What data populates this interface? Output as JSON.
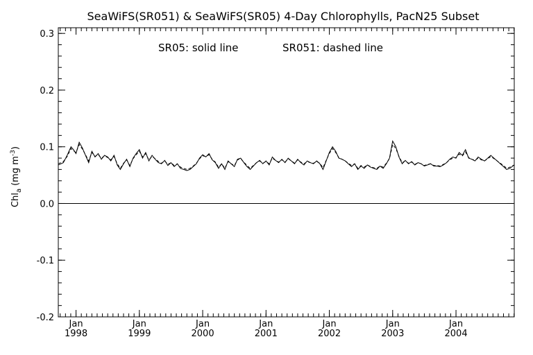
{
  "chart_data": {
    "type": "line",
    "title": "SeaWiFS(SR051) & SeaWiFS(SR05) 4-Day Chlorophylls, PacN25 Subset",
    "annotation_solid": "SR05: solid line",
    "annotation_dashed": "SR051: dashed line",
    "ylabel_main": "Chl",
    "ylabel_sub": "a",
    "ylabel_units": "(mg m",
    "ylabel_exp": "-3",
    "ylabel_close": ")",
    "xlim": [
      1997.72,
      2004.92
    ],
    "ylim": [
      -0.2,
      0.31
    ],
    "yticks": [
      -0.2,
      -0.1,
      0.0,
      0.1,
      0.2,
      0.3
    ],
    "ytick_labels": [
      "-0.2",
      "-0.1",
      "0.0",
      "0.1",
      "0.2",
      "0.3"
    ],
    "xticks": [
      {
        "x": 1998.0,
        "month": "Jan",
        "year": "1998"
      },
      {
        "x": 1999.0,
        "month": "Jan",
        "year": "1999"
      },
      {
        "x": 2000.0,
        "month": "Jan",
        "year": "2000"
      },
      {
        "x": 2001.0,
        "month": "Jan",
        "year": "2001"
      },
      {
        "x": 2002.0,
        "month": "Jan",
        "year": "2002"
      },
      {
        "x": 2003.0,
        "month": "Jan",
        "year": "2003"
      },
      {
        "x": 2004.0,
        "month": "Jan",
        "year": "2004"
      }
    ],
    "zero_line": 0.0,
    "grid": false,
    "series": [
      {
        "name": "SR05",
        "style": "solid",
        "x": [
          1997.72,
          1997.8,
          1997.86,
          1997.92,
          1997.96,
          1998.0,
          1998.05,
          1998.1,
          1998.15,
          1998.2,
          1998.25,
          1998.3,
          1998.35,
          1998.4,
          1998.45,
          1998.5,
          1998.55,
          1998.6,
          1998.65,
          1998.7,
          1998.75,
          1998.8,
          1998.85,
          1998.9,
          1998.95,
          1999.0,
          1999.05,
          1999.1,
          1999.15,
          1999.2,
          1999.25,
          1999.3,
          1999.35,
          1999.4,
          1999.45,
          1999.5,
          1999.55,
          1999.6,
          1999.65,
          1999.7,
          1999.75,
          1999.8,
          1999.85,
          1999.9,
          1999.95,
          2000.0,
          2000.05,
          2000.1,
          2000.15,
          2000.2,
          2000.25,
          2000.3,
          2000.35,
          2000.4,
          2000.45,
          2000.5,
          2000.55,
          2000.6,
          2000.65,
          2000.7,
          2000.75,
          2000.8,
          2000.85,
          2000.9,
          2000.95,
          2001.0,
          2001.05,
          2001.1,
          2001.15,
          2001.2,
          2001.25,
          2001.3,
          2001.35,
          2001.4,
          2001.45,
          2001.5,
          2001.55,
          2001.6,
          2001.65,
          2001.7,
          2001.75,
          2001.8,
          2001.85,
          2001.9,
          2001.95,
          2002.0,
          2002.05,
          2002.1,
          2002.15,
          2002.2,
          2002.25,
          2002.3,
          2002.35,
          2002.4,
          2002.45,
          2002.5,
          2002.55,
          2002.6,
          2002.65,
          2002.7,
          2002.75,
          2002.8,
          2002.85,
          2002.9,
          2002.95,
          2003.0,
          2003.05,
          2003.1,
          2003.15,
          2003.2,
          2003.25,
          2003.3,
          2003.35,
          2003.4,
          2003.45,
          2003.5,
          2003.55,
          2003.6,
          2003.65,
          2003.7,
          2003.75,
          2003.8,
          2003.85,
          2003.9,
          2003.95,
          2004.0,
          2004.05,
          2004.1,
          2004.15,
          2004.2,
          2004.25,
          2004.3,
          2004.35,
          2004.4,
          2004.45,
          2004.5,
          2004.55,
          2004.6,
          2004.65,
          2004.7,
          2004.75,
          2004.8,
          2004.85,
          2004.92
        ],
        "y": [
          0.068,
          0.072,
          0.085,
          0.1,
          0.095,
          0.088,
          0.108,
          0.098,
          0.085,
          0.072,
          0.092,
          0.082,
          0.088,
          0.078,
          0.085,
          0.082,
          0.075,
          0.085,
          0.068,
          0.06,
          0.07,
          0.078,
          0.065,
          0.08,
          0.088,
          0.095,
          0.08,
          0.09,
          0.075,
          0.085,
          0.078,
          0.072,
          0.07,
          0.076,
          0.067,
          0.072,
          0.065,
          0.07,
          0.062,
          0.06,
          0.058,
          0.06,
          0.065,
          0.07,
          0.08,
          0.086,
          0.082,
          0.088,
          0.077,
          0.072,
          0.062,
          0.07,
          0.06,
          0.075,
          0.07,
          0.065,
          0.078,
          0.08,
          0.072,
          0.065,
          0.06,
          0.066,
          0.072,
          0.076,
          0.07,
          0.075,
          0.068,
          0.082,
          0.076,
          0.072,
          0.078,
          0.072,
          0.08,
          0.075,
          0.07,
          0.078,
          0.072,
          0.068,
          0.075,
          0.072,
          0.07,
          0.075,
          0.07,
          0.06,
          0.075,
          0.09,
          0.1,
          0.092,
          0.08,
          0.078,
          0.075,
          0.07,
          0.065,
          0.07,
          0.06,
          0.066,
          0.062,
          0.068,
          0.064,
          0.062,
          0.06,
          0.066,
          0.062,
          0.07,
          0.08,
          0.11,
          0.1,
          0.082,
          0.07,
          0.076,
          0.07,
          0.074,
          0.068,
          0.072,
          0.07,
          0.066,
          0.068,
          0.07,
          0.066,
          0.066,
          0.065,
          0.068,
          0.072,
          0.078,
          0.082,
          0.08,
          0.09,
          0.085,
          0.095,
          0.08,
          0.078,
          0.075,
          0.082,
          0.078,
          0.075,
          0.08,
          0.085,
          0.08,
          0.075,
          0.07,
          0.065,
          0.06,
          0.062,
          0.068
        ]
      },
      {
        "name": "SR051",
        "style": "dashed",
        "x": [
          1997.72,
          1997.8,
          1997.86,
          1997.92,
          1997.96,
          1998.0,
          1998.05,
          1998.1,
          1998.15,
          1998.2,
          1998.25,
          1998.3,
          1998.35,
          1998.4,
          1998.45,
          1998.5,
          1998.55,
          1998.6,
          1998.65,
          1998.7,
          1998.75,
          1998.8,
          1998.85,
          1998.9,
          1998.95,
          1999.0,
          1999.05,
          1999.1,
          1999.15,
          1999.2,
          1999.25,
          1999.3,
          1999.35,
          1999.4,
          1999.45,
          1999.5,
          1999.55,
          1999.6,
          1999.65,
          1999.7,
          1999.75,
          1999.8,
          1999.85,
          1999.9,
          1999.95,
          2000.0,
          2000.05,
          2000.1,
          2000.15,
          2000.2,
          2000.25,
          2000.3,
          2000.35,
          2000.4,
          2000.45,
          2000.5,
          2000.55,
          2000.6,
          2000.65,
          2000.7,
          2000.75,
          2000.8,
          2000.85,
          2000.9,
          2000.95,
          2001.0,
          2001.05,
          2001.1,
          2001.15,
          2001.2,
          2001.25,
          2001.3,
          2001.35,
          2001.4,
          2001.45,
          2001.5,
          2001.55,
          2001.6,
          2001.65,
          2001.7,
          2001.75,
          2001.8,
          2001.85,
          2001.9,
          2001.95,
          2002.0,
          2002.05,
          2002.1,
          2002.15,
          2002.2,
          2002.25,
          2002.3,
          2002.35,
          2002.4,
          2002.45,
          2002.5,
          2002.55,
          2002.6,
          2002.65,
          2002.7,
          2002.75,
          2002.8,
          2002.85,
          2002.9,
          2002.95,
          2003.0,
          2003.05,
          2003.1,
          2003.15,
          2003.2,
          2003.25,
          2003.3,
          2003.35,
          2003.4,
          2003.45,
          2003.5,
          2003.55,
          2003.6,
          2003.65,
          2003.7,
          2003.75,
          2003.8,
          2003.85,
          2003.9,
          2003.95,
          2004.0,
          2004.05,
          2004.1,
          2004.15,
          2004.2,
          2004.25,
          2004.3,
          2004.35,
          2004.4,
          2004.45,
          2004.5,
          2004.55,
          2004.6,
          2004.65,
          2004.7,
          2004.75,
          2004.8,
          2004.85,
          2004.92
        ],
        "y": [
          0.07,
          0.074,
          0.083,
          0.097,
          0.093,
          0.09,
          0.104,
          0.096,
          0.086,
          0.075,
          0.09,
          0.083,
          0.086,
          0.08,
          0.084,
          0.081,
          0.077,
          0.083,
          0.07,
          0.062,
          0.071,
          0.077,
          0.067,
          0.079,
          0.086,
          0.092,
          0.082,
          0.088,
          0.077,
          0.083,
          0.079,
          0.074,
          0.071,
          0.075,
          0.069,
          0.072,
          0.067,
          0.07,
          0.064,
          0.062,
          0.06,
          0.062,
          0.066,
          0.071,
          0.079,
          0.084,
          0.083,
          0.086,
          0.078,
          0.073,
          0.064,
          0.07,
          0.062,
          0.074,
          0.07,
          0.067,
          0.077,
          0.079,
          0.073,
          0.067,
          0.062,
          0.067,
          0.072,
          0.075,
          0.071,
          0.074,
          0.07,
          0.08,
          0.076,
          0.073,
          0.077,
          0.073,
          0.079,
          0.075,
          0.071,
          0.077,
          0.073,
          0.07,
          0.074,
          0.072,
          0.071,
          0.074,
          0.071,
          0.063,
          0.076,
          0.088,
          0.097,
          0.09,
          0.081,
          0.078,
          0.075,
          0.071,
          0.067,
          0.07,
          0.062,
          0.067,
          0.064,
          0.068,
          0.065,
          0.063,
          0.062,
          0.066,
          0.064,
          0.071,
          0.079,
          0.104,
          0.097,
          0.083,
          0.072,
          0.075,
          0.071,
          0.073,
          0.069,
          0.072,
          0.07,
          0.067,
          0.069,
          0.07,
          0.067,
          0.067,
          0.066,
          0.069,
          0.072,
          0.077,
          0.08,
          0.081,
          0.087,
          0.084,
          0.091,
          0.081,
          0.078,
          0.076,
          0.08,
          0.077,
          0.075,
          0.079,
          0.083,
          0.079,
          0.075,
          0.071,
          0.067,
          0.062,
          0.064,
          0.068
        ]
      }
    ]
  }
}
